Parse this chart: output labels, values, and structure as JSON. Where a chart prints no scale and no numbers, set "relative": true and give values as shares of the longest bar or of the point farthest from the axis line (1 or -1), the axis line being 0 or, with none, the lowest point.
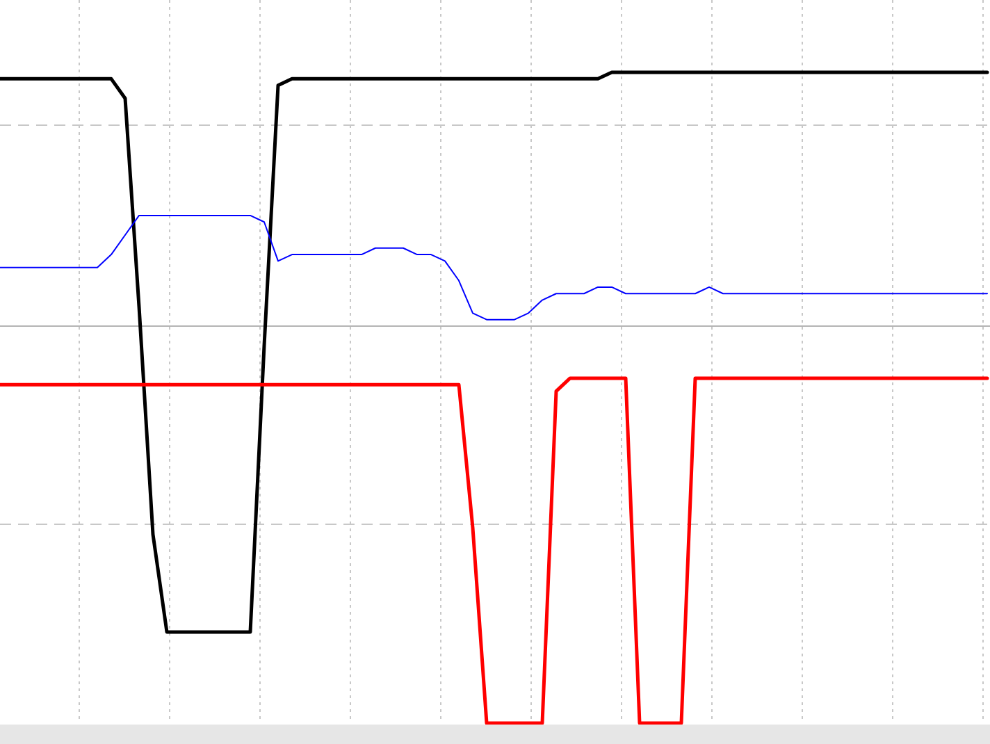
{
  "chart_data": {
    "type": "line",
    "relative": true,
    "grid": true,
    "ref_lines": [
      {
        "axis": "y",
        "value": 0.61,
        "color": "#b4b4b4"
      }
    ],
    "categories": [
      null,
      null,
      null,
      null,
      null,
      null,
      null,
      null,
      null,
      null,
      null,
      null,
      null,
      null,
      null,
      null,
      null,
      null,
      null,
      null,
      null,
      null,
      null,
      null,
      null,
      null,
      null,
      null,
      null,
      null,
      null,
      null,
      null,
      null,
      null,
      null,
      null,
      null,
      null,
      null,
      null,
      null,
      null,
      null,
      null,
      null,
      null,
      null,
      null,
      null,
      null,
      null,
      null,
      null,
      null,
      null,
      null,
      null,
      null,
      null,
      null,
      null,
      null,
      null,
      null,
      null,
      null,
      null,
      null,
      null,
      null,
      null
    ],
    "series": [
      {
        "color": "#000000",
        "values": [
          0.99,
          0.99,
          0.99,
          0.99,
          0.99,
          0.99,
          0.99,
          0.99,
          0.99,
          0.96,
          0.64,
          0.29,
          0.14,
          0.14,
          0.14,
          0.14,
          0.14,
          0.14,
          0.14,
          0.58,
          0.98,
          0.99,
          0.99,
          0.99,
          0.99,
          0.99,
          0.99,
          0.99,
          0.99,
          0.99,
          0.99,
          0.99,
          0.99,
          0.99,
          0.99,
          0.99,
          0.99,
          0.99,
          0.99,
          0.99,
          0.99,
          0.99,
          0.99,
          0.99,
          1,
          1,
          1,
          1,
          1,
          1,
          1,
          1,
          1,
          1,
          1,
          1,
          1,
          1,
          1,
          1,
          1,
          1,
          1,
          1,
          1,
          1,
          1,
          1,
          1,
          1,
          1,
          1
        ]
      },
      {
        "color": "#0000ff",
        "values": [
          0.7,
          0.7,
          0.7,
          0.7,
          0.7,
          0.7,
          0.7,
          0.7,
          0.72,
          0.75,
          0.78,
          0.78,
          0.78,
          0.78,
          0.78,
          0.78,
          0.78,
          0.78,
          0.78,
          0.77,
          0.71,
          0.72,
          0.72,
          0.72,
          0.72,
          0.72,
          0.72,
          0.73,
          0.73,
          0.73,
          0.72,
          0.72,
          0.71,
          0.68,
          0.63,
          0.62,
          0.62,
          0.62,
          0.63,
          0.65,
          0.66,
          0.66,
          0.66,
          0.67,
          0.67,
          0.66,
          0.66,
          0.66,
          0.66,
          0.66,
          0.66,
          0.67,
          0.66,
          0.66,
          0.66,
          0.66,
          0.66,
          0.66,
          0.66,
          0.66,
          0.66,
          0.66,
          0.66,
          0.66,
          0.66,
          0.66,
          0.66,
          0.66,
          0.66,
          0.66,
          0.66,
          0.66
        ]
      },
      {
        "color": "#ff0000",
        "values": [
          0.52,
          0.52,
          0.52,
          0.52,
          0.52,
          0.52,
          0.52,
          0.52,
          0.52,
          0.52,
          0.52,
          0.52,
          0.52,
          0.52,
          0.52,
          0.52,
          0.52,
          0.52,
          0.52,
          0.52,
          0.52,
          0.52,
          0.52,
          0.52,
          0.52,
          0.52,
          0.52,
          0.52,
          0.52,
          0.52,
          0.52,
          0.52,
          0.52,
          0.52,
          0.3,
          0,
          0,
          0,
          0,
          0,
          0.51,
          0.53,
          0.53,
          0.53,
          0.53,
          0.53,
          0,
          0,
          0,
          0,
          0.53,
          0.53,
          0.53,
          0.53,
          0.53,
          0.53,
          0.53,
          0.53,
          0.53,
          0.53,
          0.53,
          0.53,
          0.53,
          0.53,
          0.53,
          0.53,
          0.53,
          0.53,
          0.53,
          0.53,
          0.53,
          0.53
        ]
      }
    ]
  }
}
